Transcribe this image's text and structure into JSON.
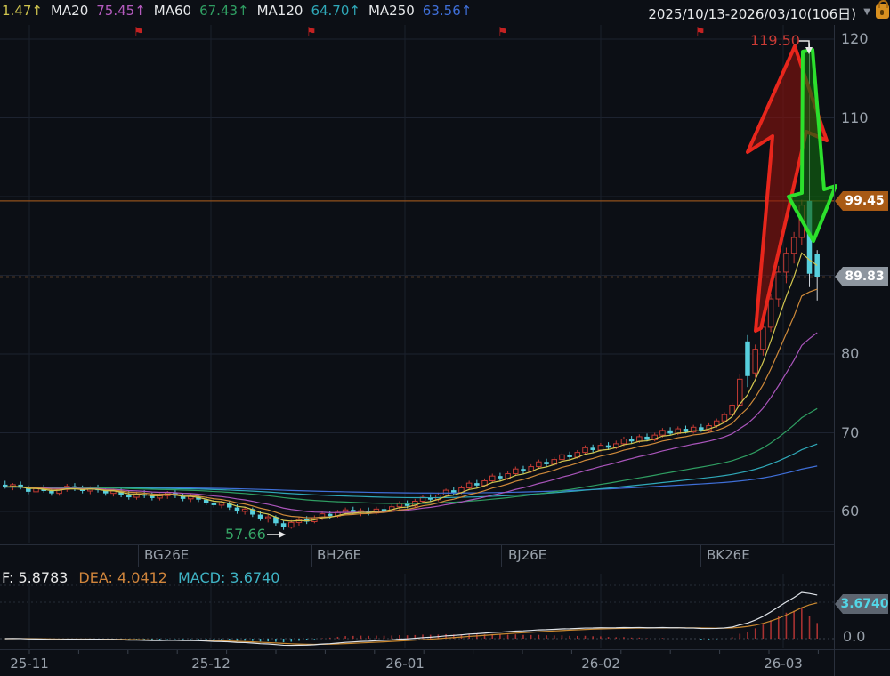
{
  "header": {
    "ma_legend": [
      {
        "label": "",
        "value": "1.47↑",
        "color": "#cfc44e"
      },
      {
        "label": "MA20",
        "value": "75.45↑",
        "color": "#b55bbf"
      },
      {
        "label": "MA60",
        "value": "67.43↑",
        "color": "#2f9e62"
      },
      {
        "label": "MA120",
        "value": "64.70↑",
        "color": "#2fa8b8"
      },
      {
        "label": "MA250",
        "value": "63.56↑",
        "color": "#3f6fd8"
      }
    ],
    "date_range": "2025/10/13-2026/03/10(106日)",
    "date_caret": "▼"
  },
  "price_axis": {
    "ticks": [
      "120",
      "110",
      "80",
      "70",
      "60"
    ],
    "badge_upper": "99.45",
    "badge_lower": "89.83"
  },
  "annotations": {
    "high_label": "119.50",
    "low_label": "57.66",
    "pin_glyph": "⚑"
  },
  "contracts": [
    "BG26E",
    "BH26E",
    "BJ26E",
    "BK26E"
  ],
  "macd_panel": {
    "dif_label": "F: 5.8783",
    "dea_label": "DEA: 4.0412",
    "macd_label": "MACD: 3.6740",
    "badge": "3.6740",
    "zero_label": "0.0"
  },
  "time_axis": [
    "25-11",
    "25-12",
    "26-01",
    "26-02",
    "26-03"
  ],
  "colors": {
    "background": "#0c0f15",
    "candle_up": "#c23a33",
    "candle_down": "#57cfdd",
    "alert_line": "#91511c",
    "badge_alert": "#a85a15",
    "badge_last": "#8e969f",
    "arrow_up": "#e8261c",
    "arrow_down": "#2ce02c",
    "dif_line": "#dfe3e8",
    "dea_line": "#c9882f",
    "hist_pos": "#a83232",
    "hist_neg": "#3fb3c4"
  },
  "chart_data": {
    "type": "candlestick",
    "title": "2025/10/13-2026/03/10(106日)",
    "bars": 106,
    "ylim": [
      56,
      121
    ],
    "y_gridlines": [
      120,
      110,
      100,
      90,
      80,
      70,
      60
    ],
    "high": 119.5,
    "low": 57.66,
    "last_price": 89.83,
    "alert_price": 99.45,
    "ma_values": {
      "fast": 1.47,
      "MA20": 75.45,
      "MA60": 67.43,
      "MA120": 64.7,
      "MA250": 63.56
    },
    "macd_values": {
      "DIF": 5.8783,
      "DEA": 4.0412,
      "MACD": 3.674
    },
    "ohlc": [
      [
        63.4,
        63.9,
        62.9,
        63.1
      ],
      [
        63.1,
        63.6,
        62.7,
        63.4
      ],
      [
        63.4,
        63.8,
        62.8,
        63.0
      ],
      [
        63.0,
        63.3,
        62.2,
        62.5
      ],
      [
        62.5,
        63.2,
        62.2,
        62.9
      ],
      [
        62.9,
        63.4,
        62.4,
        62.6
      ],
      [
        62.6,
        63.1,
        62.0,
        62.3
      ],
      [
        62.3,
        63.0,
        62.0,
        62.8
      ],
      [
        62.8,
        63.5,
        62.5,
        63.2
      ],
      [
        63.2,
        63.6,
        62.6,
        62.9
      ],
      [
        62.9,
        63.3,
        62.3,
        62.6
      ],
      [
        62.6,
        63.2,
        62.2,
        63.0
      ],
      [
        63.0,
        63.4,
        62.4,
        62.7
      ],
      [
        62.7,
        63.0,
        62.0,
        62.3
      ],
      [
        62.3,
        62.9,
        61.9,
        62.6
      ],
      [
        62.6,
        62.9,
        61.8,
        62.1
      ],
      [
        62.1,
        62.6,
        61.5,
        61.8
      ],
      [
        61.8,
        62.5,
        61.5,
        62.2
      ],
      [
        62.2,
        62.7,
        61.7,
        62.0
      ],
      [
        62.0,
        62.4,
        61.4,
        61.7
      ],
      [
        61.7,
        62.3,
        61.4,
        62.0
      ],
      [
        62.0,
        62.6,
        61.6,
        62.4
      ],
      [
        62.4,
        62.7,
        61.7,
        62.0
      ],
      [
        62.0,
        62.3,
        61.3,
        61.6
      ],
      [
        61.6,
        62.2,
        61.2,
        61.9
      ],
      [
        61.9,
        62.2,
        61.2,
        61.5
      ],
      [
        61.5,
        61.9,
        60.8,
        61.1
      ],
      [
        61.1,
        61.6,
        60.5,
        60.8
      ],
      [
        60.8,
        61.4,
        60.4,
        61.1
      ],
      [
        61.1,
        61.3,
        60.2,
        60.5
      ],
      [
        60.5,
        60.9,
        59.7,
        60.0
      ],
      [
        60.0,
        60.6,
        59.6,
        60.3
      ],
      [
        60.3,
        60.5,
        59.3,
        59.6
      ],
      [
        59.6,
        60.0,
        58.8,
        59.1
      ],
      [
        59.1,
        59.6,
        58.6,
        59.3
      ],
      [
        59.3,
        59.5,
        58.2,
        58.5
      ],
      [
        58.5,
        58.8,
        57.66,
        58.0
      ],
      [
        58.0,
        58.9,
        57.8,
        58.6
      ],
      [
        58.6,
        59.3,
        58.2,
        59.0
      ],
      [
        59.0,
        59.4,
        58.4,
        58.7
      ],
      [
        58.7,
        59.5,
        58.5,
        59.2
      ],
      [
        59.2,
        60.0,
        58.9,
        59.7
      ],
      [
        59.7,
        60.1,
        59.1,
        59.4
      ],
      [
        59.4,
        60.2,
        59.2,
        59.9
      ],
      [
        59.9,
        60.5,
        59.5,
        60.2
      ],
      [
        60.2,
        60.6,
        59.6,
        59.9
      ],
      [
        59.9,
        60.4,
        59.4,
        60.1
      ],
      [
        60.1,
        60.5,
        59.5,
        59.8
      ],
      [
        59.8,
        60.6,
        59.6,
        60.3
      ],
      [
        60.3,
        60.8,
        59.8,
        60.1
      ],
      [
        60.1,
        60.9,
        59.9,
        60.6
      ],
      [
        60.6,
        61.3,
        60.2,
        61.0
      ],
      [
        61.0,
        61.4,
        60.4,
        60.7
      ],
      [
        60.7,
        61.6,
        60.5,
        61.3
      ],
      [
        61.3,
        62.1,
        61.0,
        61.8
      ],
      [
        61.8,
        62.2,
        61.2,
        61.5
      ],
      [
        61.5,
        62.4,
        61.3,
        62.1
      ],
      [
        62.1,
        62.9,
        61.8,
        62.7
      ],
      [
        62.7,
        63.1,
        62.1,
        62.4
      ],
      [
        62.4,
        63.3,
        62.2,
        63.0
      ],
      [
        63.0,
        63.9,
        62.7,
        63.6
      ],
      [
        63.6,
        64.0,
        63.0,
        63.3
      ],
      [
        63.3,
        64.2,
        63.1,
        63.9
      ],
      [
        63.9,
        64.8,
        63.6,
        64.5
      ],
      [
        64.5,
        64.9,
        63.9,
        64.2
      ],
      [
        64.2,
        65.1,
        64.0,
        64.8
      ],
      [
        64.8,
        65.7,
        64.5,
        65.4
      ],
      [
        65.4,
        65.8,
        64.8,
        65.1
      ],
      [
        65.1,
        66.0,
        64.9,
        65.7
      ],
      [
        65.7,
        66.6,
        65.4,
        66.3
      ],
      [
        66.3,
        66.7,
        65.7,
        66.0
      ],
      [
        66.0,
        66.9,
        65.8,
        66.6
      ],
      [
        66.6,
        67.5,
        66.3,
        67.2
      ],
      [
        67.2,
        67.6,
        66.6,
        66.9
      ],
      [
        66.9,
        67.8,
        66.7,
        67.5
      ],
      [
        67.5,
        68.4,
        67.2,
        68.1
      ],
      [
        68.1,
        68.5,
        67.5,
        67.8
      ],
      [
        67.8,
        68.7,
        67.6,
        68.4
      ],
      [
        68.4,
        68.8,
        67.8,
        68.1
      ],
      [
        68.1,
        69.0,
        67.9,
        68.6
      ],
      [
        68.6,
        69.5,
        68.3,
        69.2
      ],
      [
        69.2,
        69.6,
        68.6,
        68.9
      ],
      [
        68.9,
        69.8,
        68.7,
        69.5
      ],
      [
        69.5,
        69.9,
        68.9,
        69.1
      ],
      [
        69.1,
        70.0,
        68.9,
        69.7
      ],
      [
        69.7,
        70.6,
        69.4,
        70.3
      ],
      [
        70.3,
        70.7,
        69.7,
        69.9
      ],
      [
        69.9,
        70.8,
        69.7,
        70.5
      ],
      [
        70.5,
        70.9,
        69.9,
        70.1
      ],
      [
        70.1,
        71.0,
        69.9,
        70.7
      ],
      [
        70.7,
        71.1,
        70.1,
        70.3
      ],
      [
        70.3,
        71.2,
        70.1,
        70.9
      ],
      [
        70.9,
        71.8,
        70.6,
        71.5
      ],
      [
        71.5,
        72.6,
        71.2,
        72.3
      ],
      [
        72.3,
        73.8,
        72.0,
        73.5
      ],
      [
        73.5,
        77.4,
        73.3,
        76.8
      ],
      [
        81.6,
        82.4,
        75.8,
        77.2
      ],
      [
        77.6,
        81.2,
        77.0,
        80.6
      ],
      [
        80.6,
        84.0,
        79.8,
        83.4
      ],
      [
        83.4,
        87.6,
        82.8,
        87.0
      ],
      [
        87.0,
        91.2,
        86.0,
        90.4
      ],
      [
        90.4,
        93.5,
        89.0,
        92.8
      ],
      [
        92.8,
        95.5,
        91.5,
        94.8
      ],
      [
        94.8,
        99.6,
        93.8,
        98.9
      ],
      [
        99.45,
        119.5,
        88.5,
        90.2
      ],
      [
        92.7,
        93.2,
        86.8,
        89.83
      ]
    ]
  }
}
